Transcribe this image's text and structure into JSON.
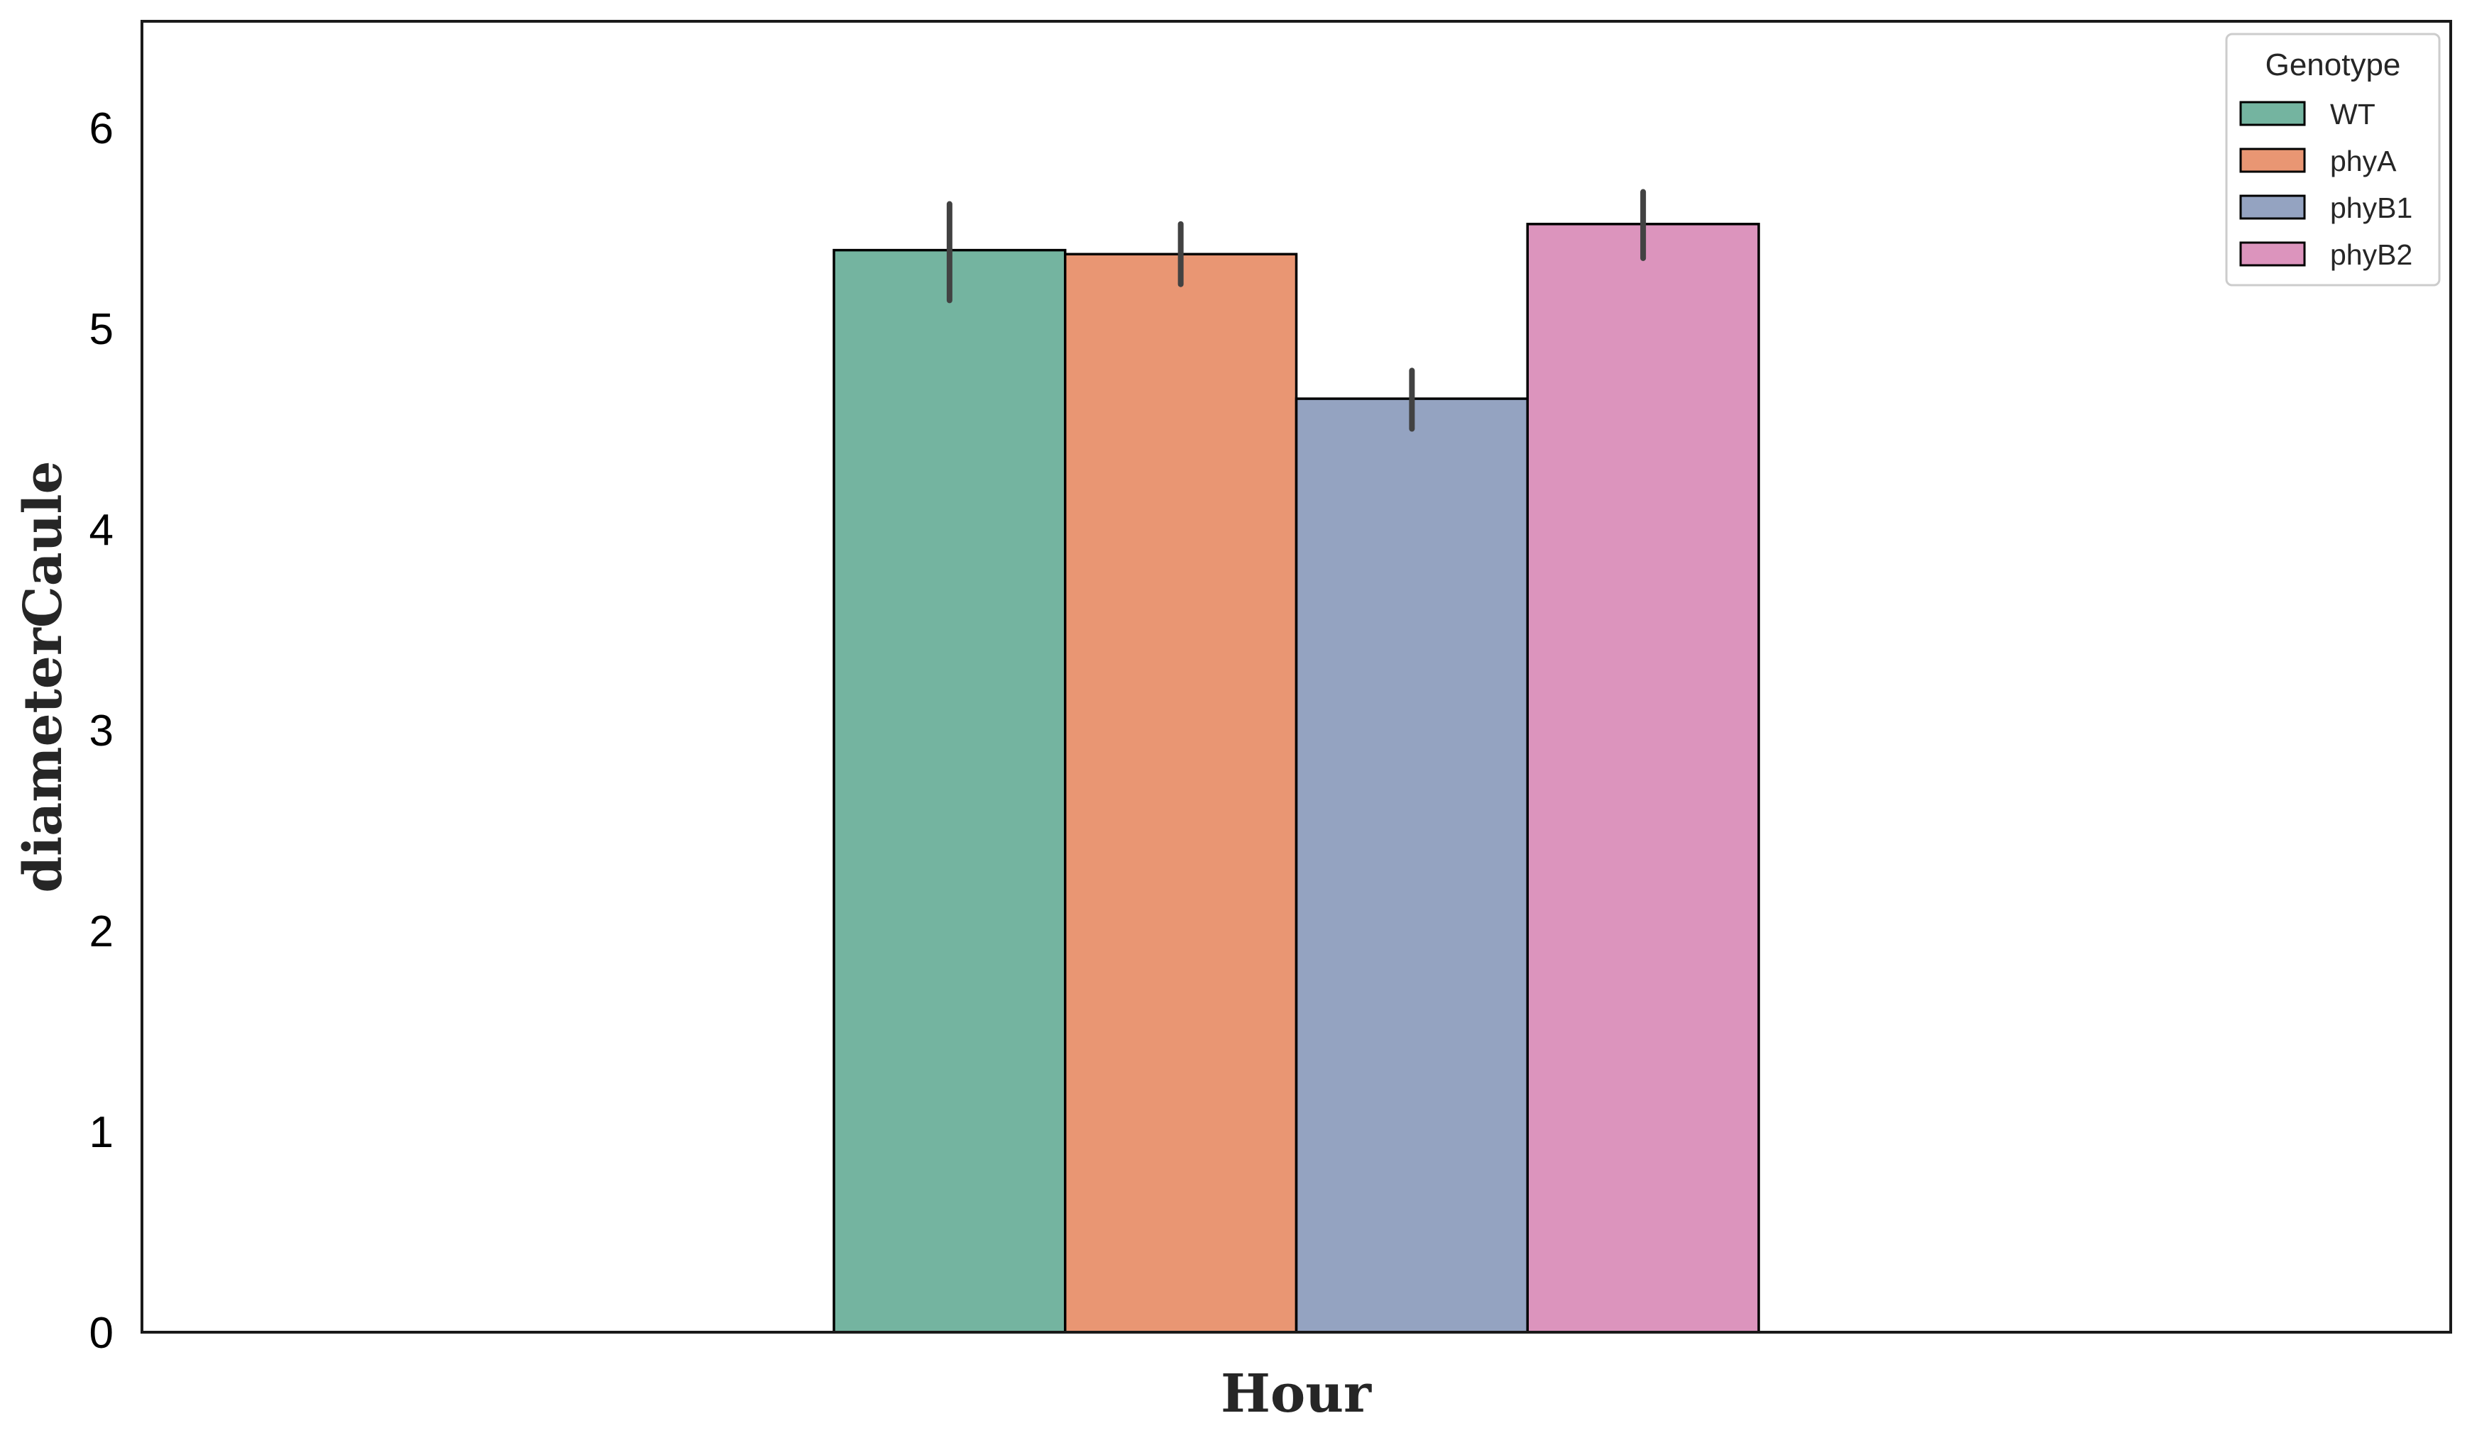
{
  "chart_data": {
    "type": "bar",
    "xlabel": "Hour",
    "ylabel": "diameterCaule",
    "ylim": [
      0,
      6.53
    ],
    "yticks": [
      0,
      1,
      2,
      3,
      4,
      5,
      6
    ],
    "categories": [
      ""
    ],
    "grid": false,
    "legend": {
      "title": "Genotype",
      "placement": "top-right"
    },
    "series": [
      {
        "name": "WT",
        "values": [
          5.39
        ],
        "error_low": [
          5.14
        ],
        "error_high": [
          5.62
        ],
        "color": "#74b4a0"
      },
      {
        "name": "phyA",
        "values": [
          5.37
        ],
        "error_low": [
          5.22
        ],
        "error_high": [
          5.52
        ],
        "color": "#e99673"
      },
      {
        "name": "phyB1",
        "values": [
          4.65
        ],
        "error_low": [
          4.5
        ],
        "error_high": [
          4.79
        ],
        "color": "#94a3c1"
      },
      {
        "name": "phyB2",
        "values": [
          5.52
        ],
        "error_low": [
          5.35
        ],
        "error_high": [
          5.68
        ],
        "color": "#dc94bd"
      }
    ]
  }
}
